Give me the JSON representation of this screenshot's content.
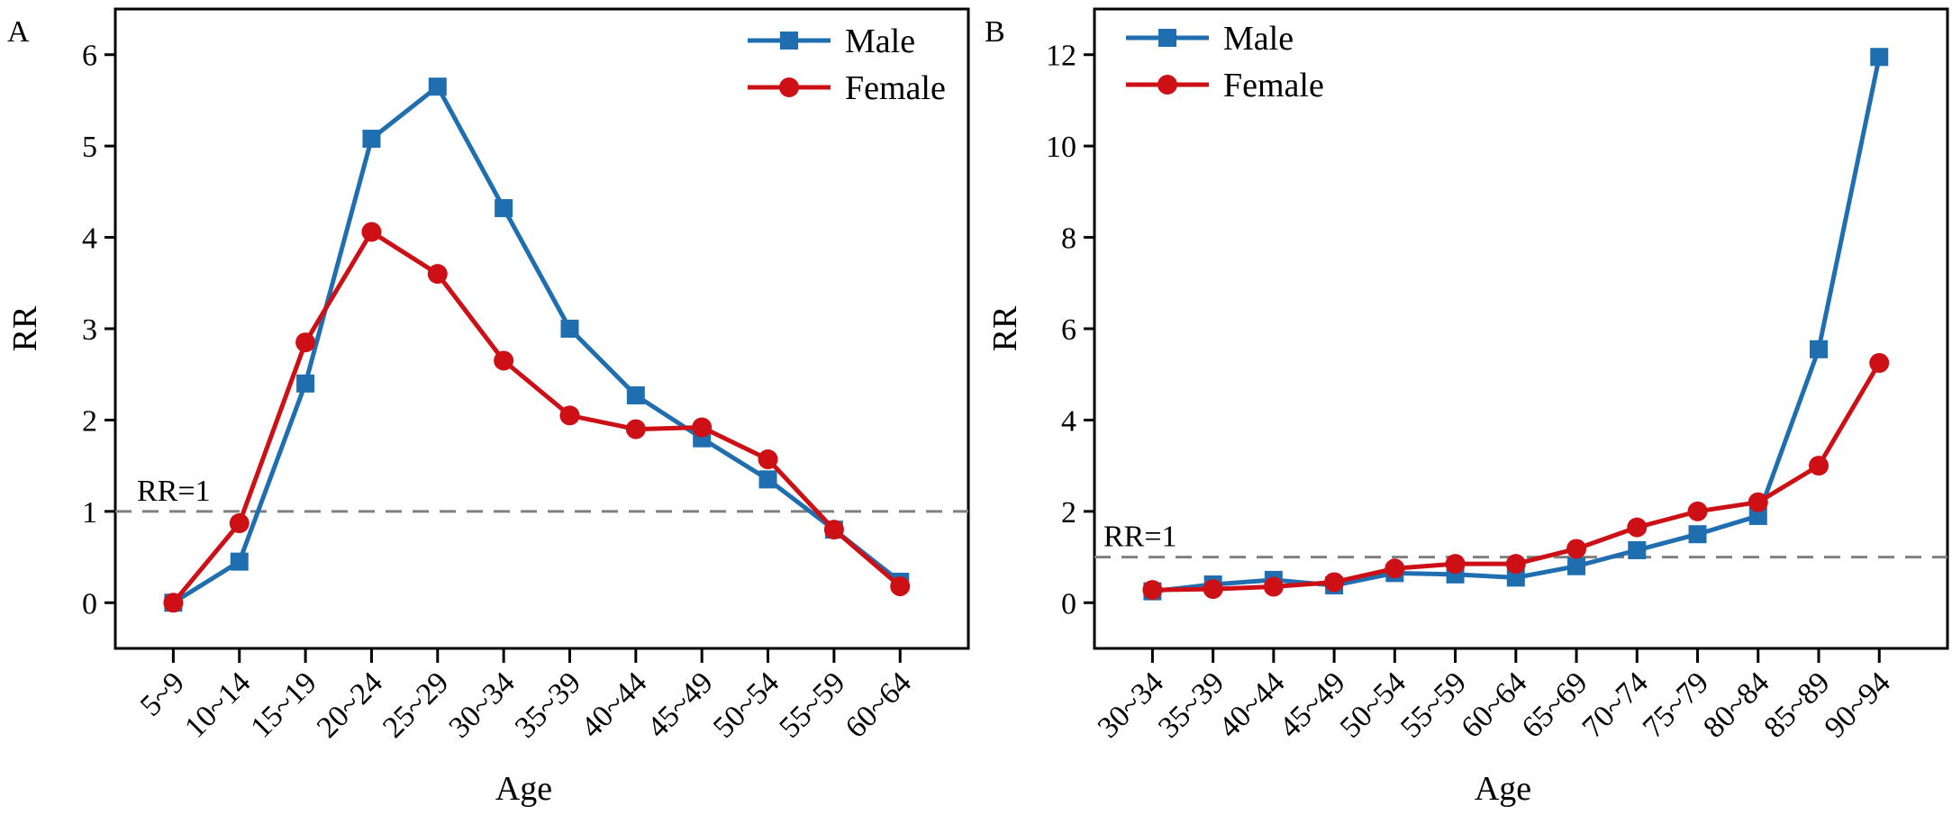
{
  "colors": {
    "male": "#1f6fb0",
    "female": "#cc1016",
    "ref": "#808080",
    "axis": "#000000"
  },
  "chart_data": [
    {
      "type": "line",
      "panel_label": "A",
      "xlabel": "Age",
      "ylabel": "RR",
      "ylim": [
        -0.5,
        6.5
      ],
      "yticks": [
        0,
        1,
        2,
        3,
        4,
        5,
        6
      ],
      "categories": [
        "5~9",
        "10~14",
        "15~19",
        "20~24",
        "25~29",
        "30~34",
        "35~39",
        "40~44",
        "45~49",
        "50~54",
        "55~59",
        "60~64"
      ],
      "series": [
        {
          "name": "Male",
          "marker": "square",
          "values": [
            0.0,
            0.45,
            2.4,
            5.08,
            5.65,
            4.32,
            3.0,
            2.27,
            1.8,
            1.35,
            0.8,
            0.23
          ]
        },
        {
          "name": "Female",
          "marker": "circle",
          "values": [
            0.0,
            0.87,
            2.85,
            4.06,
            3.6,
            2.65,
            2.05,
            1.9,
            1.92,
            1.57,
            0.8,
            0.18
          ]
        }
      ],
      "reference": {
        "y": 1,
        "label": "RR=1"
      },
      "legend": "top-right",
      "grid": false
    },
    {
      "type": "line",
      "panel_label": "B",
      "xlabel": "Age",
      "ylabel": "RR",
      "ylim": [
        -1,
        13
      ],
      "yticks": [
        0,
        2,
        4,
        6,
        8,
        10,
        12
      ],
      "categories": [
        "30~34",
        "35~39",
        "40~44",
        "45~49",
        "50~54",
        "55~59",
        "60~64",
        "65~69",
        "70~74",
        "75~79",
        "80~84",
        "85~89",
        "90~94"
      ],
      "series": [
        {
          "name": "Male",
          "marker": "square",
          "values": [
            0.25,
            0.4,
            0.5,
            0.38,
            0.65,
            0.62,
            0.55,
            0.8,
            1.15,
            1.5,
            1.9,
            5.55,
            11.95
          ]
        },
        {
          "name": "Female",
          "marker": "circle",
          "values": [
            0.28,
            0.3,
            0.35,
            0.45,
            0.75,
            0.85,
            0.85,
            1.18,
            1.65,
            2.0,
            2.2,
            3.0,
            5.25
          ]
        }
      ],
      "reference": {
        "y": 1,
        "label": "RR=1"
      },
      "legend": "top-left",
      "grid": false
    }
  ]
}
